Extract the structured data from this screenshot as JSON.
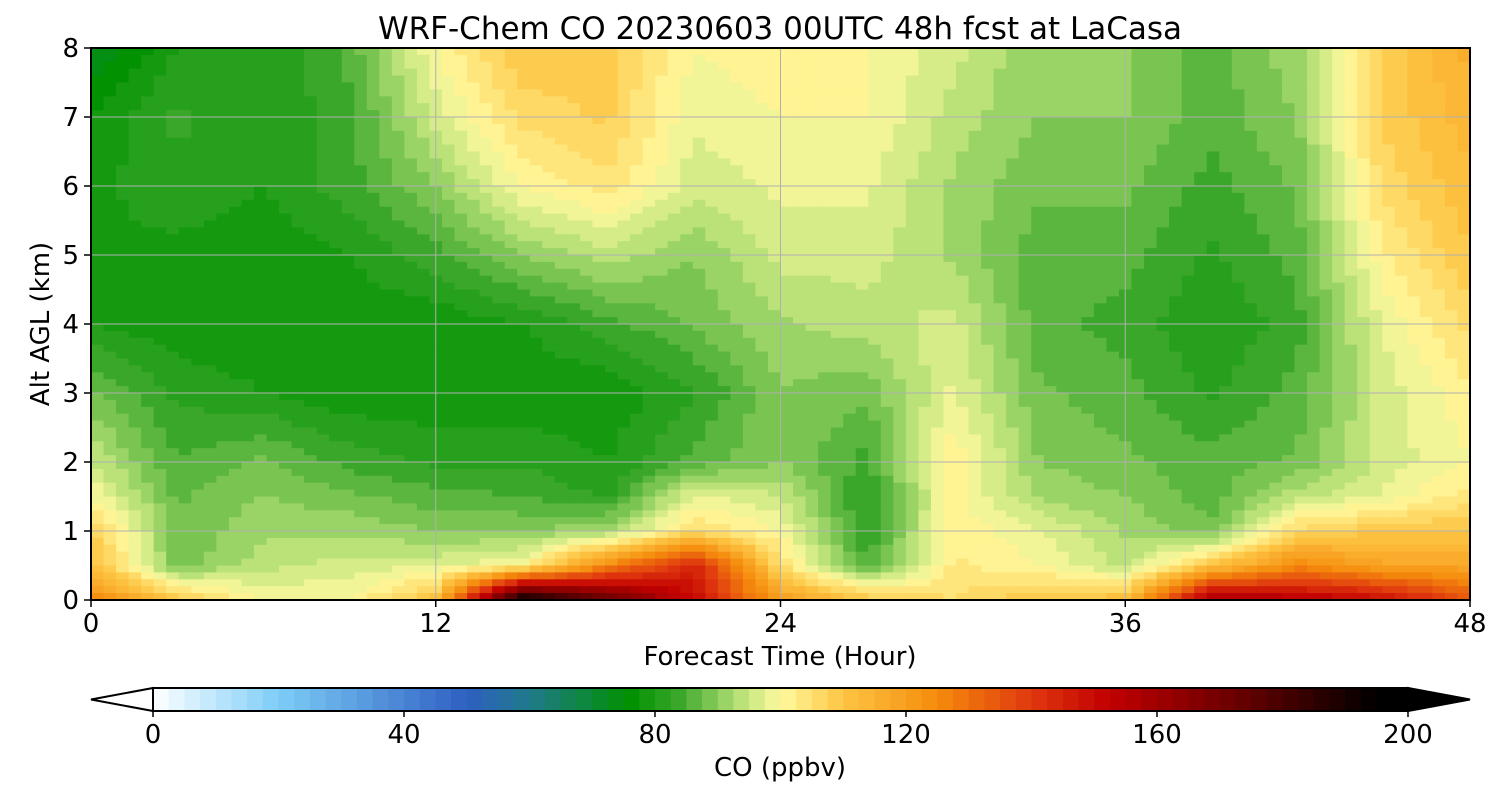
{
  "chart_data": {
    "type": "heatmap",
    "title": "WRF-Chem CO  20230603 00UTC 48h fcst at LaCasa",
    "xlabel": "Forecast Time (Hour)",
    "ylabel": "Alt AGL (km)",
    "xlim": [
      0,
      48
    ],
    "ylim": [
      0,
      8
    ],
    "x_ticks": [
      "0",
      "12",
      "24",
      "36",
      "48"
    ],
    "y_ticks": [
      "0",
      "1",
      "2",
      "3",
      "4",
      "5",
      "6",
      "7",
      "8"
    ],
    "grid": true,
    "x": [
      0,
      3,
      6,
      9,
      12,
      15,
      18,
      21,
      24,
      27,
      30,
      33,
      36,
      39,
      42,
      45,
      48
    ],
    "y": [
      0,
      0.5,
      1,
      1.5,
      2,
      3,
      4,
      5,
      6,
      7,
      8
    ],
    "z": [
      [
        125,
        110,
        100,
        100,
        112,
        195,
        175,
        150,
        120,
        110,
        105,
        110,
        112,
        160,
        155,
        150,
        135
      ],
      [
        112,
        88,
        94,
        96,
        97,
        100,
        125,
        145,
        105,
        85,
        103,
        100,
        94,
        110,
        125,
        118,
        118
      ],
      [
        108,
        88,
        92,
        92,
        90,
        90,
        92,
        105,
        100,
        82,
        102,
        98,
        92,
        88,
        106,
        110,
        110
      ],
      [
        100,
        87,
        90,
        88,
        86,
        85,
        82,
        98,
        95,
        82,
        101,
        92,
        90,
        86,
        94,
        98,
        104
      ],
      [
        95,
        85,
        88,
        84,
        82,
        82,
        80,
        86,
        90,
        84,
        102,
        90,
        88,
        86,
        88,
        96,
        100
      ],
      [
        88,
        82,
        80,
        78,
        78,
        78,
        78,
        82,
        90,
        88,
        98,
        88,
        86,
        82,
        86,
        96,
        102
      ],
      [
        80,
        78,
        78,
        78,
        78,
        80,
        84,
        88,
        92,
        94,
        96,
        86,
        84,
        80,
        84,
        98,
        106
      ],
      [
        80,
        79,
        78,
        80,
        84,
        90,
        94,
        90,
        96,
        96,
        92,
        86,
        86,
        82,
        86,
        102,
        110
      ],
      [
        79,
        82,
        80,
        84,
        90,
        100,
        104,
        96,
        98,
        98,
        92,
        88,
        88,
        84,
        88,
        106,
        112
      ],
      [
        78,
        83,
        80,
        84,
        96,
        106,
        108,
        98,
        100,
        100,
        94,
        90,
        90,
        86,
        90,
        108,
        114
      ],
      [
        72,
        80,
        80,
        86,
        100,
        110,
        108,
        100,
        102,
        100,
        96,
        90,
        90,
        86,
        92,
        108,
        116
      ]
    ],
    "colorbar": {
      "label": "CO  (ppbv)",
      "min": 0,
      "max": 200,
      "ticks": [
        "0",
        "40",
        "80",
        "120",
        "160",
        "200"
      ],
      "extend": "both",
      "stops": [
        {
          "value": 0,
          "color": "#ffffff"
        },
        {
          "value": 20,
          "color": "#7ccdf7"
        },
        {
          "value": 50,
          "color": "#2f5fc2"
        },
        {
          "value": 60,
          "color": "#1f7a8a"
        },
        {
          "value": 76,
          "color": "#009100"
        },
        {
          "value": 84,
          "color": "#3ca82c"
        },
        {
          "value": 93,
          "color": "#b2df74"
        },
        {
          "value": 100,
          "color": "#fffa9e"
        },
        {
          "value": 110,
          "color": "#fdc543"
        },
        {
          "value": 125,
          "color": "#f58b0c"
        },
        {
          "value": 140,
          "color": "#e0380e"
        },
        {
          "value": 152,
          "color": "#c20000"
        },
        {
          "value": 176,
          "color": "#5a0000"
        },
        {
          "value": 195,
          "color": "#000000"
        },
        {
          "value": 200,
          "color": "#000000"
        }
      ]
    }
  }
}
